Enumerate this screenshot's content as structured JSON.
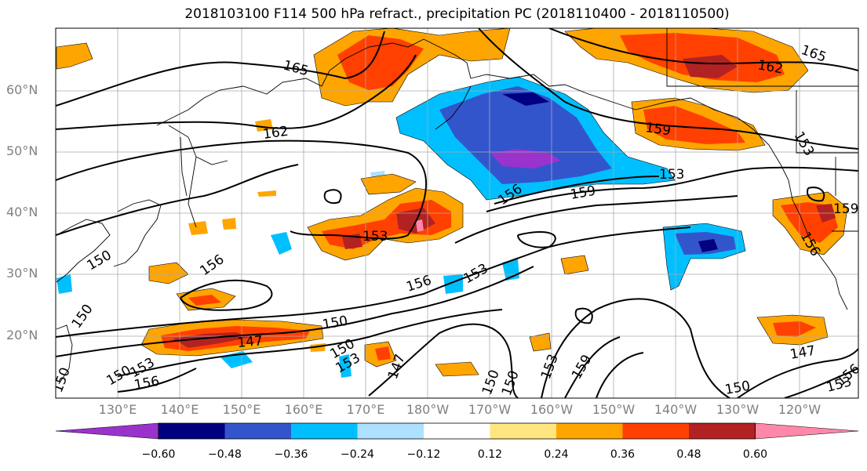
{
  "title": "2018103100 F114 500 hPa refract., precipitation PC (2018110400 - 2018110500)",
  "lat_labels": [
    "20°N",
    "30°N",
    "40°N",
    "50°N",
    "60°N"
  ],
  "lon_labels": [
    "130°E",
    "140°E",
    "150°E",
    "160°E",
    "170°E",
    "180°W",
    "170°W",
    "160°W",
    "150°W",
    "140°W",
    "130°W",
    "120°W"
  ],
  "colorbar": {
    "tick_labels": [
      "−0.60",
      "−0.48",
      "−0.36",
      "−0.24",
      "−0.12",
      "0.12",
      "0.24",
      "0.36",
      "0.48",
      "0.60"
    ],
    "colors": [
      "#9933cc",
      "#000080",
      "#3355cc",
      "#00bfff",
      "#aee0ff",
      "#ffffff",
      "#ffe680",
      "#ffa500",
      "#ff4000",
      "#b22222",
      "#ff88aa"
    ]
  },
  "contour_labels": [
    "165",
    "162",
    "162",
    "165",
    "159",
    "156",
    "153",
    "156",
    "159",
    "153",
    "159",
    "150",
    "156",
    "153",
    "156",
    "153",
    "150",
    "150",
    "147",
    "150",
    "153",
    "147",
    "153",
    "159",
    "147",
    "150",
    "153",
    "156",
    "150",
    "153",
    "156",
    "150",
    "150",
    "150"
  ]
}
